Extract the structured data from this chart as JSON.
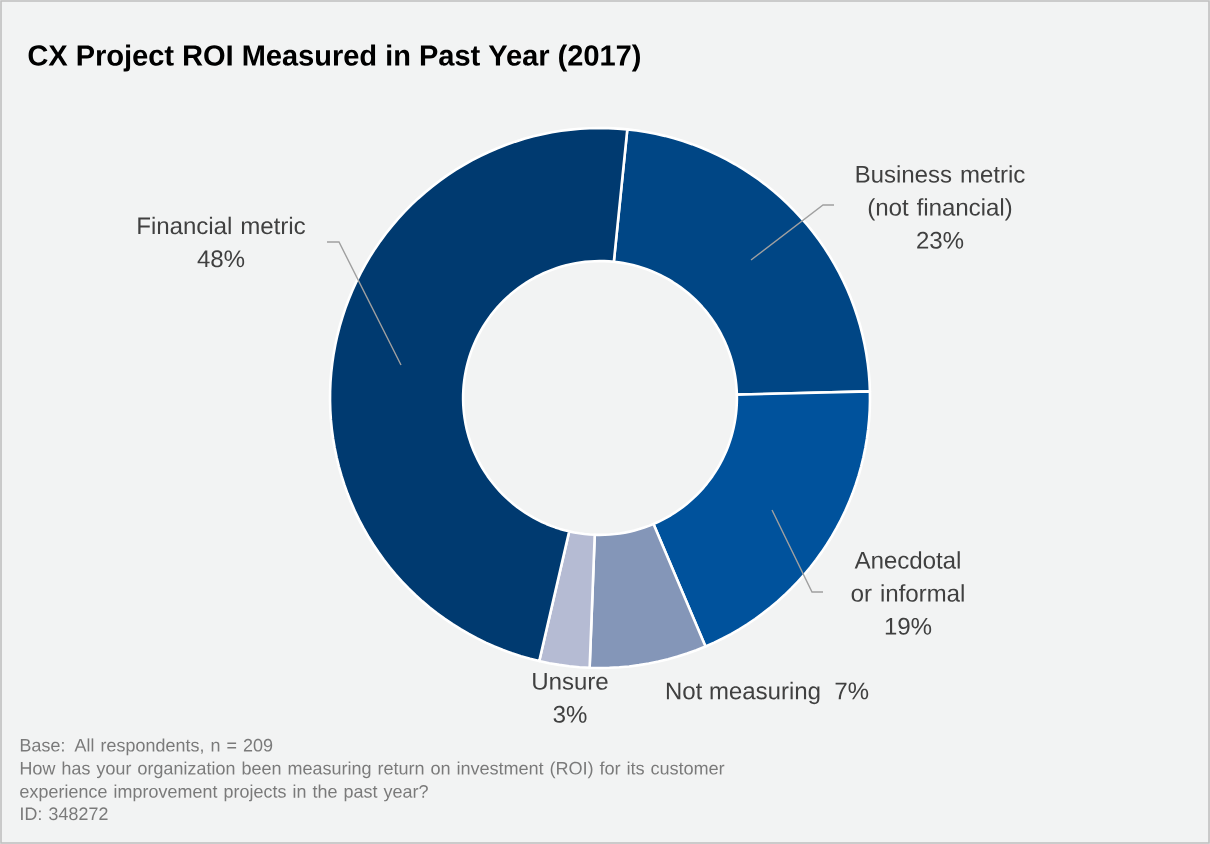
{
  "chart_data": {
    "type": "donut",
    "title": "CX Project ROI Measured in Past Year (2017)",
    "categories": [
      "Business metric (not financial)",
      "Anecdotal or informal",
      "Not measuring",
      "Unsure",
      "Financial metric"
    ],
    "values": [
      23,
      19,
      7,
      3,
      48
    ],
    "value_labels": [
      "23%",
      "19%",
      "7%",
      "3%",
      "48%"
    ],
    "colors": [
      "#004685",
      "#00529c",
      "#8496b8",
      "#b5bbd3",
      "#003a70"
    ],
    "annotations": [
      "Base: All respondents, n = 209",
      "How has your organization been measuring return on investment (ROI) for its customer experience improvement projects in the past year?",
      "ID: 348272"
    ]
  }
}
